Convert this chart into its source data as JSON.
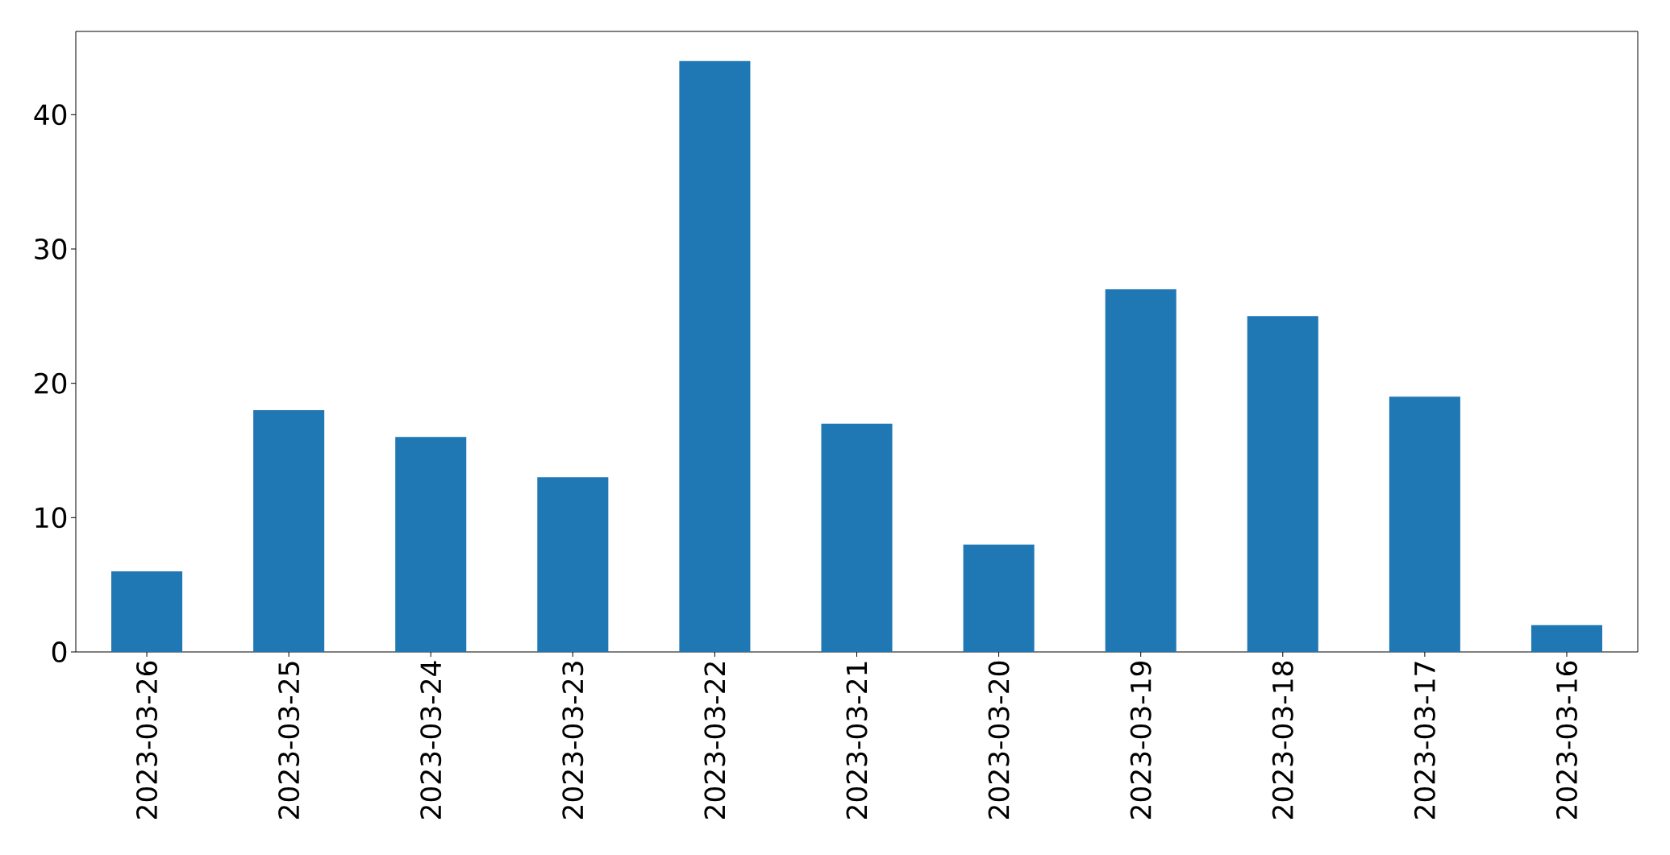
{
  "chart_data": {
    "type": "bar",
    "categories": [
      "2023-03-26",
      "2023-03-25",
      "2023-03-24",
      "2023-03-23",
      "2023-03-22",
      "2023-03-21",
      "2023-03-20",
      "2023-03-19",
      "2023-03-18",
      "2023-03-17",
      "2023-03-16"
    ],
    "values": [
      6,
      18,
      16,
      13,
      44,
      17,
      8,
      27,
      25,
      19,
      2
    ],
    "color": "#1f77b4",
    "ylim": [
      0,
      46.2
    ],
    "yticks": [
      0,
      10,
      20,
      30,
      40
    ]
  }
}
